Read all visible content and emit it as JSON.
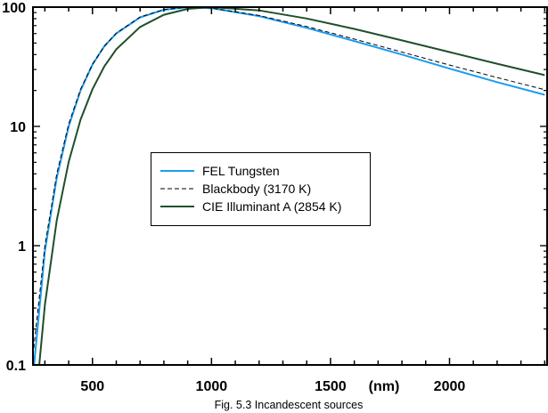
{
  "chart_data": {
    "type": "line",
    "title": "",
    "caption": "Fig. 5.3  Incandescent sources",
    "xlabel": "(nm)",
    "ylabel": "",
    "xlim": [
      250,
      2410
    ],
    "ylim": [
      0.1,
      100
    ],
    "yscale": "log",
    "grid": false,
    "legend_position": "center-left",
    "x_ticks": [
      500,
      1000,
      1500,
      2000
    ],
    "x_tick_labels": [
      "500",
      "1000",
      "1500",
      "2000"
    ],
    "y_ticks": [
      0.1,
      1,
      10,
      100
    ],
    "y_tick_labels": [
      "0.1",
      "1",
      "10",
      "100"
    ],
    "x": [
      250,
      300,
      350,
      400,
      450,
      500,
      550,
      600,
      700,
      800,
      900,
      1000,
      1200,
      1400,
      1600,
      1800,
      2000,
      2200,
      2400
    ],
    "series": [
      {
        "name": "FEL Tungsten",
        "color": "#1a9cf0",
        "style": "solid",
        "values": [
          0.08,
          0.9,
          3.7,
          10,
          20,
          33,
          47,
          60,
          82,
          95,
          99.8,
          98,
          84,
          67,
          52,
          40,
          30.5,
          23.5,
          18.4
        ]
      },
      {
        "name": "Blackbody (3170 K)",
        "color": "#000000",
        "style": "dashed",
        "values": [
          0.12,
          1.0,
          4.0,
          10.5,
          20.5,
          33.2,
          47.1,
          60.5,
          82.7,
          95.5,
          99.9,
          98.1,
          85.1,
          68.7,
          54,
          42,
          32.7,
          25.7,
          20.3
        ]
      },
      {
        "name": "CIE Illuminant A (2854 K)",
        "color": "#1f4f2a",
        "style": "solid",
        "values": [
          0.0275,
          0.32,
          1.63,
          5.05,
          11.4,
          20.5,
          31.9,
          44.3,
          68.2,
          86.2,
          96.6,
          100,
          93.9,
          80.3,
          65.6,
          52.6,
          42,
          33.5,
          26.9
        ]
      }
    ]
  }
}
